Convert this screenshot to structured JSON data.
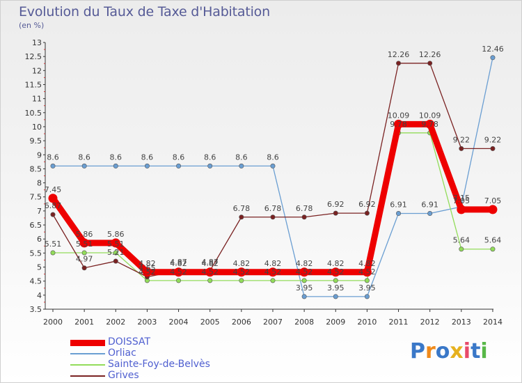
{
  "title": "Evolution du Taux de Taxe d'Habitation",
  "subtitle": "(en %)",
  "logo": "Proxiti",
  "chart_data": {
    "type": "line",
    "x": [
      "2000",
      "2001",
      "2002",
      "2003",
      "2004",
      "2005",
      "2006",
      "2007",
      "2008",
      "2009",
      "2010",
      "2011",
      "2012",
      "2013",
      "2014"
    ],
    "ylim": [
      3.5,
      13
    ],
    "ytick_step": 0.5,
    "yticks": [
      "3.5",
      "4",
      "4.5",
      "5",
      "5.5",
      "6",
      "6.5",
      "7",
      "7.5",
      "8",
      "8.5",
      "9",
      "9.5",
      "10",
      "10.5",
      "11",
      "11.5",
      "12",
      "12.5",
      "13"
    ],
    "grid": false,
    "legend_position": "bottom-left",
    "series": [
      {
        "name": "DOISSAT",
        "color": "#ee0000",
        "bold": true,
        "values": [
          7.45,
          5.86,
          5.86,
          4.82,
          4.82,
          4.82,
          4.82,
          4.82,
          4.82,
          4.82,
          4.82,
          10.09,
          10.09,
          7.05,
          7.05
        ],
        "labels": [
          "7.45",
          "5.86",
          "5.86",
          "4.82",
          "4.82",
          "4.82",
          "4.82",
          "4.82",
          "4.82",
          "4.82",
          "4.82",
          "10.09",
          "10.09",
          "7.05",
          "7.05"
        ]
      },
      {
        "name": "Orliac",
        "color": "#6a9ed2",
        "values": [
          8.6,
          8.6,
          8.6,
          8.6,
          8.6,
          8.6,
          8.6,
          8.6,
          3.95,
          3.95,
          3.95,
          6.91,
          6.91,
          7.15,
          12.46
        ],
        "labels": [
          "8.6",
          "8.6",
          "8.6",
          "8.6",
          "8.6",
          "8.6",
          "8.6",
          "8.6",
          "3.95",
          "3.95",
          "3.95",
          "6.91",
          "6.91",
          "7.15",
          "12.46"
        ]
      },
      {
        "name": "Sainte-Foy-de-Belvès",
        "color": "#92dc5a",
        "values": [
          5.51,
          5.51,
          5.51,
          4.52,
          4.52,
          4.52,
          4.52,
          4.52,
          4.52,
          4.52,
          4.52,
          9.78,
          9.78,
          5.64,
          5.64
        ],
        "labels": [
          "5.51",
          "5.51",
          "5.51",
          "4.52",
          "4.52",
          "4.52",
          "4.52",
          "4.52",
          "4.52",
          "4.52",
          "4.52",
          "9.78",
          "9.78",
          "5.64",
          "5.64"
        ]
      },
      {
        "name": "Grives",
        "color": "#7a2222",
        "values": [
          6.87,
          4.97,
          5.21,
          4.65,
          4.87,
          4.87,
          6.78,
          6.78,
          6.78,
          6.92,
          6.92,
          12.26,
          12.26,
          9.22,
          9.22
        ],
        "labels": [
          "6.87",
          "4.97",
          "5.21",
          "4.65",
          "4.87",
          "4.87",
          "6.78",
          "6.78",
          "6.78",
          "6.92",
          "6.92",
          "12.26",
          "12.26",
          "9.22",
          "9.22"
        ]
      }
    ]
  }
}
